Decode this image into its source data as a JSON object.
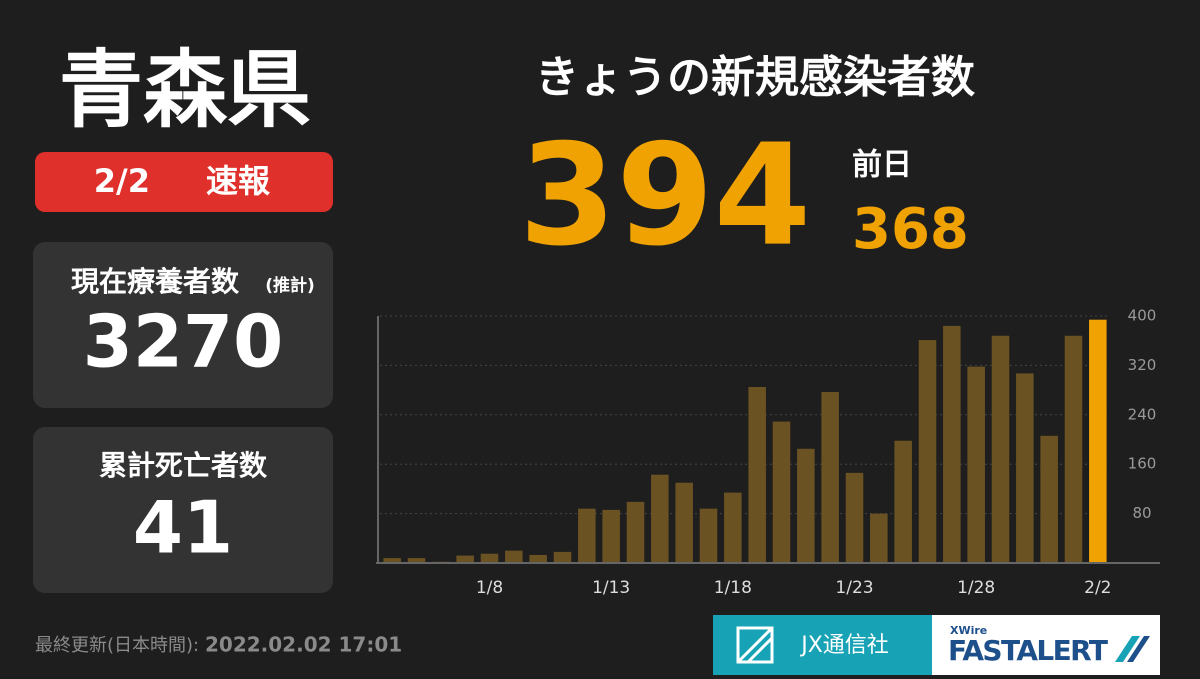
{
  "prefecture": "青森県",
  "badge": {
    "date": "2/2",
    "label": "速報"
  },
  "cards": [
    {
      "title": "現在療養者数",
      "note": "(推計)",
      "value": "3270"
    },
    {
      "title": "累計死亡者数",
      "value": "41"
    }
  ],
  "headline": {
    "title": "きょうの新規感染者数",
    "value": "394",
    "previous_label": "前日",
    "previous_value": "368"
  },
  "footer": {
    "label": "最終更新(日本時間):",
    "timestamp": "2022.02.02 17:01"
  },
  "logos": {
    "jx": "JX通信社",
    "xwire": "XWire",
    "fastalert": "FASTALERT"
  },
  "chart_data": {
    "type": "bar",
    "categories": [
      null,
      null,
      null,
      null,
      "1/8",
      null,
      null,
      null,
      null,
      "1/13",
      null,
      null,
      null,
      null,
      "1/18",
      null,
      null,
      null,
      null,
      "1/23",
      null,
      null,
      null,
      null,
      "1/28",
      null,
      null,
      null,
      null,
      "2/2"
    ],
    "values": [
      8,
      8,
      2,
      12,
      15,
      20,
      13,
      18,
      88,
      86,
      99,
      143,
      130,
      88,
      114,
      285,
      229,
      185,
      277,
      146,
      80,
      198,
      361,
      384,
      318,
      368,
      307,
      206,
      368,
      394
    ],
    "colors": [
      "#6b5222",
      "#6b5222",
      "#6b5222",
      "#6b5222",
      "#6b5222",
      "#6b5222",
      "#6b5222",
      "#6b5222",
      "#6b5222",
      "#6b5222",
      "#6b5222",
      "#6b5222",
      "#6b5222",
      "#6b5222",
      "#6b5222",
      "#6b5222",
      "#6b5222",
      "#6b5222",
      "#6b5222",
      "#6b5222",
      "#6b5222",
      "#6b5222",
      "#6b5222",
      "#6b5222",
      "#6b5222",
      "#6b5222",
      "#6b5222",
      "#6b5222",
      "#6b5222",
      "#f0a202"
    ],
    "ylim": [
      0,
      400
    ],
    "yticks": [
      80,
      160,
      240,
      320,
      400
    ],
    "grid": true
  }
}
